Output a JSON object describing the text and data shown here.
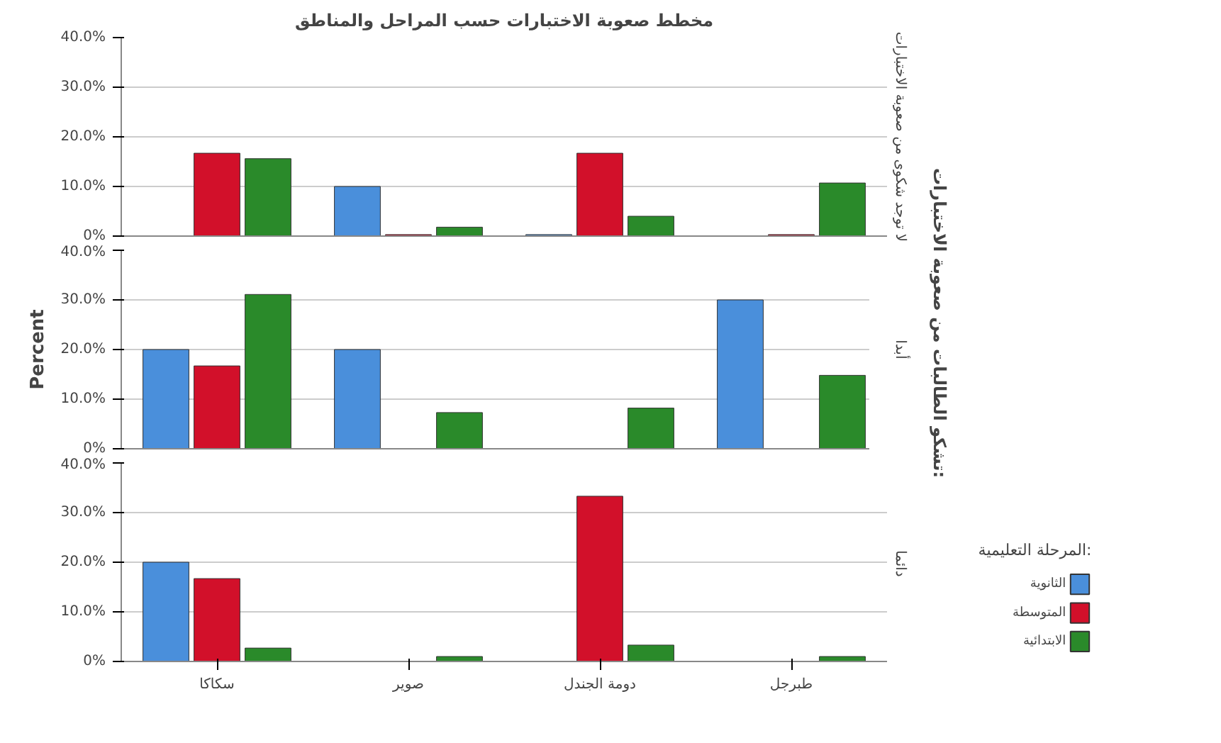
{
  "chart_data": [
    {
      "type": "bar",
      "title": "مخطط صعوبة الاختبارات حسب المراحل والمناطق",
      "y2label": "لا توجد شكوى من صعوبة الاختبارات",
      "categories": [
        null,
        null,
        null,
        null
      ],
      "ylim": [
        0,
        40
      ],
      "yticks": [
        {
          "value": 0,
          "label": "0%"
        },
        {
          "value": 10,
          "label": "10.0%"
        },
        {
          "value": 20,
          "label": "20.0%"
        },
        {
          "value": 30,
          "label": "30.0%"
        },
        {
          "value": 40,
          "label": "40.0%"
        }
      ],
      "grid": "y",
      "tick_labels": "y",
      "series": [
        {
          "color": "#4a8fdb",
          "values": [
            null,
            10.0,
            0.3,
            null
          ]
        },
        {
          "color": "#d2102a",
          "values": [
            16.7,
            0.3,
            16.7,
            0.3
          ]
        },
        {
          "color": "#2a8a2a",
          "values": [
            15.6,
            1.8,
            4.0,
            10.7
          ]
        }
      ]
    },
    {
      "type": "bar",
      "ylabel": "Percent",
      "y2label": "أبدا",
      "annotations": [
        "تشكو الطالبات من صعوبة الاختبارات:"
      ],
      "categories": [
        null,
        null,
        null,
        null
      ],
      "ylim": [
        0,
        40
      ],
      "yticks": [
        {
          "value": 0,
          "label": "0%"
        },
        {
          "value": 10,
          "label": "10.0%"
        },
        {
          "value": 20,
          "label": "20.0%"
        },
        {
          "value": 30,
          "label": "30.0%"
        },
        {
          "value": 40,
          "label": "40.0%"
        }
      ],
      "grid": "y",
      "tick_labels": "y",
      "series": [
        {
          "color": "#4a8fdb",
          "values": [
            20.0,
            20.0,
            null,
            30.0
          ]
        },
        {
          "color": "#d2102a",
          "values": [
            16.7,
            null,
            null,
            null
          ]
        },
        {
          "color": "#2a8a2a",
          "values": [
            31.1,
            7.3,
            8.2,
            14.8
          ]
        }
      ]
    },
    {
      "type": "bar",
      "y2label": "دائما",
      "legend_title": "المرحلة التعليمية:",
      "legend": "right",
      "categories": [
        "سكاكا",
        "صوير",
        "دومة الجندل",
        "طبرجل"
      ],
      "ylim": [
        0,
        40
      ],
      "yticks": [
        {
          "value": 0,
          "label": "0%"
        },
        {
          "value": 10,
          "label": "10.0%"
        },
        {
          "value": 20,
          "label": "20.0%"
        },
        {
          "value": 30,
          "label": "30.0%"
        },
        {
          "value": 40,
          "label": "40.0%"
        }
      ],
      "grid": "y",
      "series": [
        {
          "name": "الثانوية",
          "color": "#4a8fdb",
          "values": [
            20.0,
            null,
            null,
            null
          ]
        },
        {
          "name": "المتوسطة",
          "color": "#d2102a",
          "values": [
            16.7,
            null,
            33.3,
            null
          ]
        },
        {
          "name": "الابتدائية",
          "color": "#2a8a2a",
          "values": [
            2.7,
            1.0,
            3.3,
            1.0
          ]
        }
      ]
    }
  ]
}
